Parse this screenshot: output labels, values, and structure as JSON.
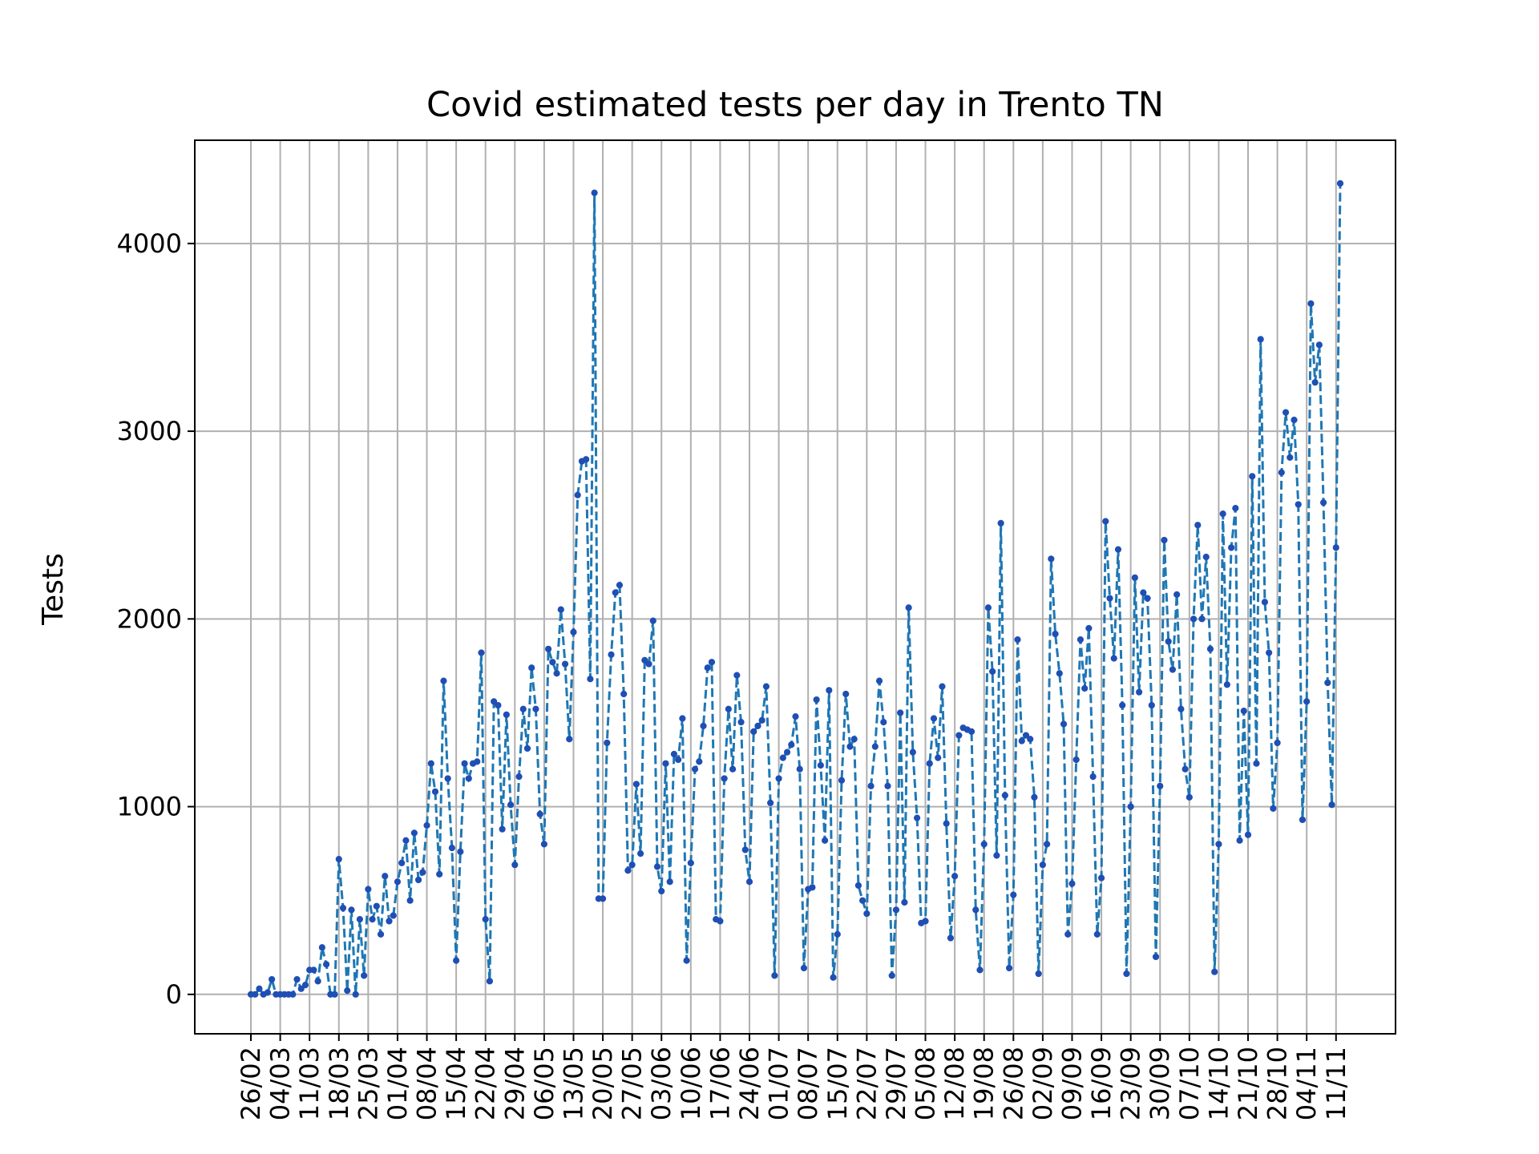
{
  "chart_data": {
    "type": "line",
    "title": "Covid estimated tests per day in Trento TN",
    "xlabel": "",
    "ylabel": "Tests",
    "grid": true,
    "legend": "none",
    "x_start": "26/02",
    "x_end": "12/11",
    "x_tick_labels": [
      "26/02",
      "04/03",
      "11/03",
      "18/03",
      "25/03",
      "01/04",
      "08/04",
      "15/04",
      "22/04",
      "29/04",
      "06/05",
      "13/05",
      "20/05",
      "27/05",
      "03/06",
      "10/06",
      "17/06",
      "24/06",
      "01/07",
      "08/07",
      "15/07",
      "22/07",
      "29/07",
      "05/08",
      "12/08",
      "19/08",
      "26/08",
      "02/09",
      "09/09",
      "16/09",
      "23/09",
      "30/09",
      "07/10",
      "14/10",
      "21/10",
      "28/10",
      "04/11",
      "11/11"
    ],
    "y_ticks": [
      0,
      1000,
      2000,
      3000,
      4000
    ],
    "ylim": [
      -210,
      4550
    ],
    "colors": {
      "line": "#1f77b4",
      "marker": "#1f4fb4"
    },
    "series": [
      {
        "values": [
          0,
          0,
          30,
          0,
          10,
          80,
          0,
          0,
          0,
          0,
          0,
          80,
          30,
          50,
          130,
          130,
          70,
          250,
          160,
          0,
          0,
          720,
          460,
          20,
          450,
          0,
          400,
          100,
          560,
          400,
          470,
          320,
          630,
          390,
          420,
          600,
          700,
          820,
          500,
          860,
          610,
          650,
          900,
          1230,
          1080,
          640,
          1670,
          1150,
          780,
          180,
          760,
          1230,
          1150,
          1230,
          1240,
          1820,
          400,
          70,
          1560,
          1540,
          880,
          1490,
          1010,
          690,
          1160,
          1520,
          1310,
          1740,
          1520,
          960,
          800,
          1840,
          1770,
          1710,
          2050,
          1760,
          1360,
          1930,
          2660,
          2840,
          2850,
          1680,
          4270,
          510,
          510,
          1340,
          1810,
          2140,
          2180,
          1600,
          660,
          690,
          1120,
          750,
          1780,
          1760,
          1990,
          680,
          550,
          1230,
          600,
          1280,
          1250,
          1470,
          180,
          700,
          1200,
          1240,
          1430,
          1740,
          1770,
          400,
          390,
          1150,
          1520,
          1200,
          1700,
          1450,
          770,
          600,
          1400,
          1430,
          1460,
          1640,
          1020,
          100,
          1150,
          1260,
          1290,
          1330,
          1480,
          1200,
          140,
          560,
          570,
          1570,
          1220,
          820,
          1620,
          90,
          320,
          1140,
          1600,
          1320,
          1360,
          580,
          500,
          430,
          1110,
          1320,
          1670,
          1450,
          1110,
          100,
          450,
          1500,
          490,
          2060,
          1290,
          940,
          380,
          390,
          1230,
          1470,
          1260,
          1640,
          910,
          300,
          630,
          1380,
          1420,
          1410,
          1400,
          450,
          130,
          800,
          2060,
          1720,
          740,
          2510,
          1060,
          140,
          530,
          1890,
          1350,
          1380,
          1360,
          1050,
          110,
          690,
          800,
          2320,
          1920,
          1710,
          1440,
          320,
          590,
          1250,
          1890,
          1630,
          1950,
          1160,
          320,
          620,
          2520,
          2110,
          1790,
          2370,
          1540,
          110,
          1000,
          2220,
          1610,
          2140,
          2110,
          1540,
          200,
          1110,
          2420,
          1880,
          1730,
          2130,
          1520,
          1200,
          1050,
          2000,
          2500,
          2000,
          2330,
          1840,
          120,
          800,
          2560,
          1650,
          2380,
          2590,
          820,
          1510,
          850,
          2760,
          1230,
          3490,
          2090,
          1820,
          990,
          1340,
          2780,
          3100,
          2860,
          3060,
          2610,
          930,
          1560,
          3680,
          3260,
          3460,
          2620,
          1660,
          1010,
          2380,
          4320
        ]
      }
    ]
  }
}
